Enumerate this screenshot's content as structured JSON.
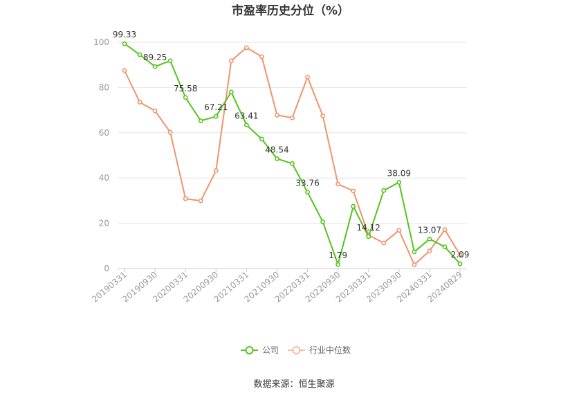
{
  "chart_data": {
    "type": "line",
    "title": "市盈率历史分位（%）",
    "x": [
      "20190331",
      "20190630",
      "20190930",
      "20191231",
      "20200331",
      "20200630",
      "20200930",
      "20201231",
      "20210331",
      "20210630",
      "20210930",
      "20211231",
      "20220331",
      "20220630",
      "20220930",
      "20221230",
      "20230331",
      "20230630",
      "20230930",
      "20231229",
      "20240331",
      "20240630",
      "20240829"
    ],
    "x_tick_labels": [
      "20190331",
      "20190930",
      "20200331",
      "20200930",
      "20210331",
      "20210930",
      "20220331",
      "20220930",
      "20230331",
      "20230930",
      "20240331",
      "20240829"
    ],
    "ylim": [
      0,
      100
    ],
    "y_ticks": [
      0,
      20,
      40,
      60,
      80,
      100
    ],
    "grid": true,
    "legend_position": "bottom",
    "series": [
      {
        "name": "公司",
        "color": "#52c41a",
        "values": [
          99.33,
          94.5,
          89.25,
          91.8,
          75.58,
          65.3,
          67.21,
          78.0,
          63.41,
          57.2,
          48.54,
          46.4,
          33.76,
          20.7,
          1.79,
          27.5,
          14.12,
          34.5,
          38.09,
          7.4,
          13.07,
          9.6,
          2.09
        ],
        "labels": {
          "0": "99.33",
          "2": "89.25",
          "4": "75.58",
          "6": "67.21",
          "8": "63.41",
          "10": "48.54",
          "12": "33.76",
          "14": "1.79",
          "16": "14.12",
          "18": "38.09",
          "20": "13.07",
          "22": "2.09"
        }
      },
      {
        "name": "行业中位数",
        "color": "#f0936b",
        "values": [
          87.5,
          73.5,
          69.7,
          60.2,
          30.9,
          29.9,
          43.3,
          91.8,
          97.6,
          93.6,
          67.8,
          66.6,
          84.6,
          67.5,
          37.3,
          34.3,
          14.8,
          11.3,
          16.9,
          1.7,
          7.8,
          17.2,
          6.0
        ]
      }
    ]
  },
  "source_text": "数据来源：恒生聚源"
}
